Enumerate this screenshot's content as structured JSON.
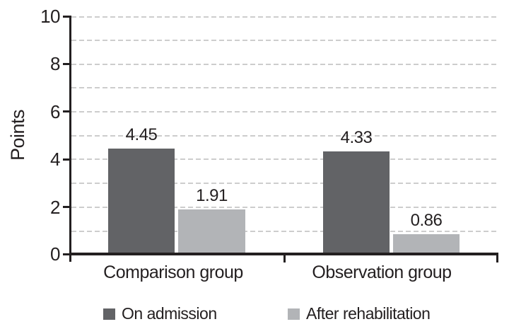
{
  "chart_data": {
    "type": "bar",
    "title": "",
    "categories": [
      "Comparison group",
      "Observation group"
    ],
    "series": [
      {
        "name": "On admission",
        "color": "#626366",
        "values": [
          4.45,
          4.33
        ]
      },
      {
        "name": "After rehabilitation",
        "color": "#b2b4b7",
        "values": [
          1.91,
          0.86
        ]
      }
    ],
    "ylabel": "Points",
    "xlabel": "",
    "ylim": [
      0,
      10
    ],
    "ytick_labels": [
      "0",
      "2",
      "4",
      "6",
      "8",
      "10"
    ],
    "gridlines": "horizontal dashed at every 1 unit",
    "legend_position": "bottom",
    "value_labels_shown": true
  },
  "axis": {
    "yticks": [
      "10",
      "8",
      "6",
      "4",
      "2",
      "0"
    ],
    "ytitle": "Points"
  },
  "legend": {
    "items": [
      {
        "label": "On admission",
        "color": "#626366"
      },
      {
        "label": "After rehabilitation",
        "color": "#b2b4b7"
      }
    ]
  },
  "colors": {
    "bar_dark": "#626366",
    "bar_light": "#b2b4b7",
    "axis_and_text": "#231f20",
    "gridline": "#cdcdcd",
    "background": "#ffffff"
  }
}
